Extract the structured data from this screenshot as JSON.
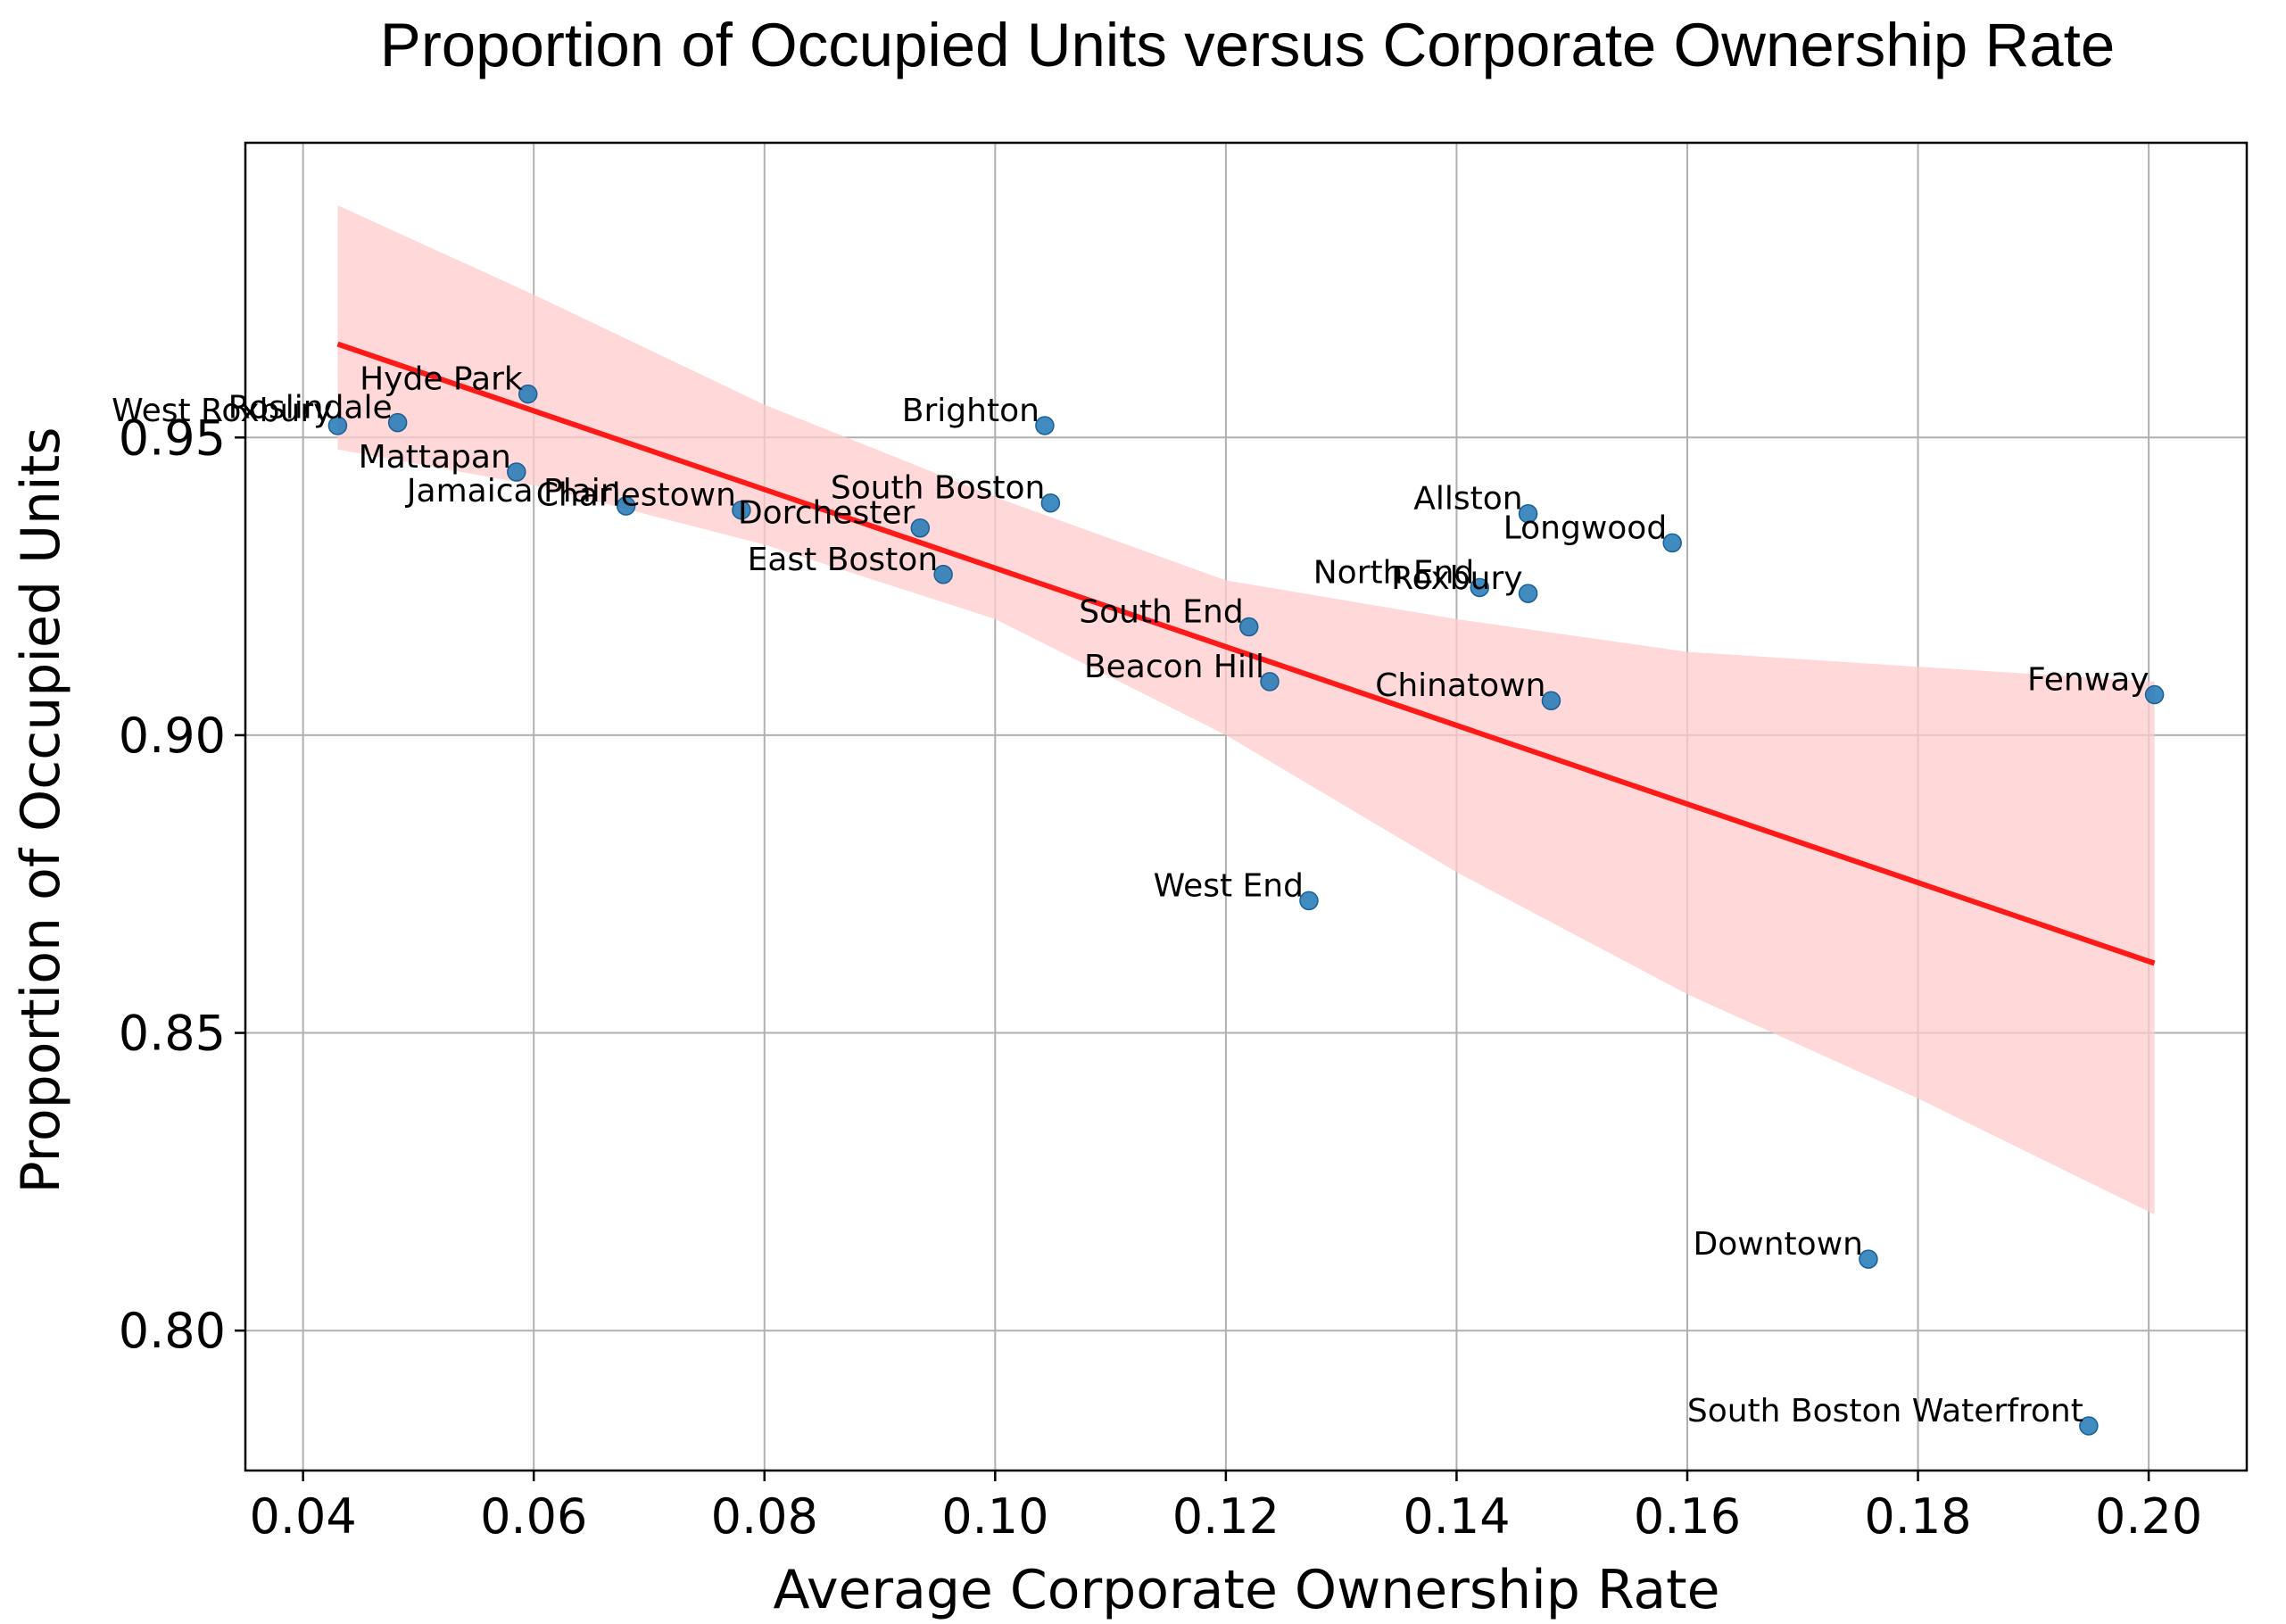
{
  "chart_data": {
    "type": "scatter",
    "title": "Proportion of Occupied Units versus Corporate Ownership Rate",
    "xlabel": "Average Corporate Ownership Rate",
    "ylabel": "Proportion of Occupied Units",
    "xlim": [
      0.035,
      0.2085
    ],
    "ylim": [
      0.7765,
      0.9995
    ],
    "xticks": [
      0.04,
      0.06,
      0.08,
      0.1,
      0.12,
      0.14,
      0.16,
      0.18,
      0.2
    ],
    "xtick_labels": [
      "0.04",
      "0.06",
      "0.08",
      "0.10",
      "0.12",
      "0.14",
      "0.16",
      "0.18",
      "0.20"
    ],
    "yticks": [
      0.8,
      0.85,
      0.9,
      0.95
    ],
    "ytick_labels": [
      "0.80",
      "0.85",
      "0.90",
      "0.95"
    ],
    "grid": true,
    "colors": {
      "points": "#1f77b4",
      "fit_line": "#ff1a1a",
      "ci_band": "#ffcccc",
      "grid": "#b0b0b0"
    },
    "points": [
      {
        "label": "West Roxbury",
        "x": 0.043,
        "y": 0.952
      },
      {
        "label": "Roslindale",
        "x": 0.0482,
        "y": 0.9525
      },
      {
        "label": "Hyde Park",
        "x": 0.0595,
        "y": 0.9573
      },
      {
        "label": "Mattapan",
        "x": 0.0585,
        "y": 0.9442
      },
      {
        "label": "Jamaica Plain",
        "x": 0.068,
        "y": 0.9385
      },
      {
        "label": "Charlestown",
        "x": 0.078,
        "y": 0.9378
      },
      {
        "label": "Dorchester",
        "x": 0.0935,
        "y": 0.9348
      },
      {
        "label": "East Boston",
        "x": 0.0955,
        "y": 0.927
      },
      {
        "label": "Brighton",
        "x": 0.1043,
        "y": 0.952
      },
      {
        "label": "South Boston",
        "x": 0.1048,
        "y": 0.939
      },
      {
        "label": "South End",
        "x": 0.122,
        "y": 0.9182
      },
      {
        "label": "Beacon Hill",
        "x": 0.1238,
        "y": 0.909
      },
      {
        "label": "West End",
        "x": 0.1272,
        "y": 0.8722
      },
      {
        "label": "North End",
        "x": 0.142,
        "y": 0.9248
      },
      {
        "label": "Roxbury",
        "x": 0.1462,
        "y": 0.9238
      },
      {
        "label": "Allston",
        "x": 0.1462,
        "y": 0.9372
      },
      {
        "label": "Chinatown",
        "x": 0.1482,
        "y": 0.9058
      },
      {
        "label": "Longwood",
        "x": 0.1587,
        "y": 0.9323
      },
      {
        "label": "Downtown",
        "x": 0.1757,
        "y": 0.812
      },
      {
        "label": "South Boston Waterfront",
        "x": 0.1948,
        "y": 0.784
      },
      {
        "label": "Fenway",
        "x": 0.2005,
        "y": 0.9068
      }
    ],
    "regression_line": {
      "x": [
        0.043,
        0.2005
      ],
      "y": [
        0.9657,
        0.8617
      ]
    },
    "confidence_band": {
      "x": [
        0.043,
        0.06,
        0.08,
        0.1,
        0.12,
        0.14,
        0.16,
        0.18,
        0.2005
      ],
      "upper": [
        0.989,
        0.974,
        0.9555,
        0.94,
        0.926,
        0.9195,
        0.914,
        0.9115,
        0.909
      ],
      "lower": [
        0.948,
        0.942,
        0.932,
        0.9195,
        0.9,
        0.877,
        0.8565,
        0.839,
        0.8195
      ]
    }
  }
}
